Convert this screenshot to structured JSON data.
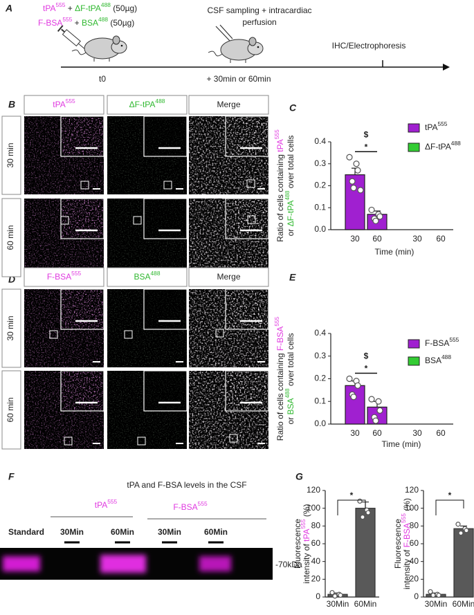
{
  "panel_labels": [
    "A",
    "B",
    "C",
    "D",
    "E",
    "F",
    "G"
  ],
  "panel_a": {
    "injection": [
      [
        {
          "text": "tPA",
          "sup": "555",
          "color": "#e03ae0"
        },
        {
          "text": " + "
        },
        {
          "text": "ΔF-tPA",
          "sup": "488",
          "color": "#2fb82f"
        },
        {
          "text": " (50µg)"
        }
      ],
      [
        {
          "text": "F-BSA",
          "sup": "555",
          "color": "#e03ae0"
        },
        {
          "text": " + "
        },
        {
          "text": "BSA",
          "sup": "488",
          "color": "#2fb82f"
        },
        {
          "text": " (50µg)"
        }
      ]
    ],
    "sampling": [
      "CSF sampling + intracardiac",
      "perfusion"
    ],
    "endpoint": "IHC/Electrophoresis",
    "t0": "t0",
    "delay": "+ 30min or 60min"
  },
  "panel_b": {
    "headers": [
      [
        {
          "text": "tPA",
          "sup": "555",
          "color": "#e03ae0"
        }
      ],
      [
        {
          "text": "ΔF-tPA",
          "sup": "488",
          "color": "#2fb82f"
        }
      ],
      [
        {
          "text": "Merge"
        }
      ]
    ],
    "rows": [
      "30 min",
      "60 min"
    ]
  },
  "panel_d": {
    "headers": [
      [
        {
          "text": "F-BSA",
          "sup": "555",
          "color": "#e03ae0"
        }
      ],
      [
        {
          "text": "BSA",
          "sup": "488",
          "color": "#2fb82f"
        }
      ],
      [
        {
          "text": "Merge"
        }
      ]
    ],
    "rows": [
      "30 min",
      "60 min"
    ]
  },
  "panel_f": {
    "title": "tPA and F-BSA levels in the CSF",
    "groups": [
      [
        {
          "text": "tPA",
          "sup": "555",
          "color": "#e03ae0"
        }
      ],
      [
        {
          "text": "F-BSA",
          "sup": "555",
          "color": "#e03ae0"
        }
      ]
    ],
    "lanes": [
      "Standard",
      "30Min",
      "60Min",
      "30Min",
      "60Min"
    ],
    "marker": "-70kDa"
  },
  "chart_data": [
    {
      "type": "bar",
      "categories": [
        "30",
        "60",
        "30",
        "60"
      ],
      "series": [
        {
          "name": "tPA",
          "name_sup": "555",
          "color": "#a020d0",
          "values": [
            0.25,
            0.07,
            null,
            null
          ],
          "errors": [
            0.03,
            0.015,
            null,
            null
          ],
          "points": [
            [
              0.33,
              0.3,
              0.27,
              0.22,
              0.19,
              0.18
            ],
            [
              0.09,
              0.07,
              0.06,
              0.05,
              0.04
            ],
            [],
            []
          ]
        },
        {
          "name": "ΔF-tPA",
          "name_sup": "488",
          "color": "#33cc33",
          "values": [
            null,
            null,
            0,
            0
          ]
        }
      ],
      "ylim": [
        0,
        0.4
      ],
      "yticks": [
        {
          "value": 0,
          "label": "0.0"
        },
        0.1,
        0.2,
        0.3,
        0.4
      ],
      "ylabel": [
        [
          {
            "text": "Ratio of cells containing "
          },
          {
            "text": "tPA",
            "sup": "555",
            "color": "#e03ae0"
          }
        ],
        [
          {
            "text": "or "
          },
          {
            "text": "ΔF-tPA",
            "sup": "488",
            "color": "#2fb82f"
          },
          {
            "text": " over total cells"
          }
        ]
      ],
      "xlabel": "Time (min)",
      "annotations": [
        "$",
        "*"
      ]
    },
    {
      "type": "bar",
      "categories": [
        "30",
        "60",
        "30",
        "60"
      ],
      "series": [
        {
          "name": "F-BSA",
          "name_sup": "555",
          "color": "#a020d0",
          "values": [
            0.17,
            0.075,
            null,
            null
          ],
          "errors": [
            0.02,
            0.025,
            null,
            null
          ],
          "points": [
            [
              0.2,
              0.19,
              0.17,
              0.13,
              0.12
            ],
            [
              0.11,
              0.1,
              0.06,
              0.03,
              0.015
            ],
            [],
            []
          ]
        },
        {
          "name": "BSA",
          "name_sup": "488",
          "color": "#33cc33",
          "values": [
            null,
            null,
            0,
            0
          ]
        }
      ],
      "ylim": [
        0,
        0.4
      ],
      "yticks": [
        {
          "value": 0,
          "label": "0.0"
        },
        0.1,
        0.2,
        0.3,
        0.4
      ],
      "ylabel": [
        [
          {
            "text": "Ratio of cells containing "
          },
          {
            "text": "F-BSA",
            "sup": "555",
            "color": "#e03ae0"
          }
        ],
        [
          {
            "text": "or "
          },
          {
            "text": "BSA",
            "sup": "488",
            "color": "#2fb82f"
          },
          {
            "text": " over total cells"
          }
        ]
      ],
      "xlabel": "Time (min)",
      "annotations": [
        "$",
        "*"
      ]
    },
    {
      "type": "bar",
      "categories": [
        "30Min",
        "60Min"
      ],
      "values": [
        3,
        100
      ],
      "errors": [
        1.5,
        7
      ],
      "points": [
        [
          5,
          3,
          2,
          1
        ],
        [
          108,
          98,
          95,
          90
        ]
      ],
      "color": "#595959",
      "ylim": [
        0,
        120
      ],
      "yticks": [
        0,
        20,
        40,
        60,
        80,
        100,
        120
      ],
      "ylabel": [
        [
          {
            "text": "Fluorescence"
          }
        ],
        [
          {
            "text": "intensity of "
          },
          {
            "text": "tPA",
            "sup": "555",
            "color": "#e03ae0"
          },
          {
            "text": " (%)"
          }
        ]
      ],
      "annotations": [
        "*"
      ]
    },
    {
      "type": "bar",
      "categories": [
        "30Min",
        "60Min"
      ],
      "values": [
        3,
        77
      ],
      "errors": [
        1.5,
        3
      ],
      "points": [
        [
          6,
          3,
          2,
          2
        ],
        [
          82,
          77,
          75,
          72
        ]
      ],
      "color": "#595959",
      "ylim": [
        0,
        120
      ],
      "yticks": [
        0,
        20,
        40,
        60,
        80,
        100,
        120
      ],
      "ylabel": [
        [
          {
            "text": "Fluorescence"
          }
        ],
        [
          {
            "text": "intensity of "
          },
          {
            "text": "F-BSA",
            "sup": "555",
            "color": "#e03ae0"
          },
          {
            "text": " (%)"
          }
        ]
      ],
      "annotations": [
        "*"
      ]
    }
  ]
}
